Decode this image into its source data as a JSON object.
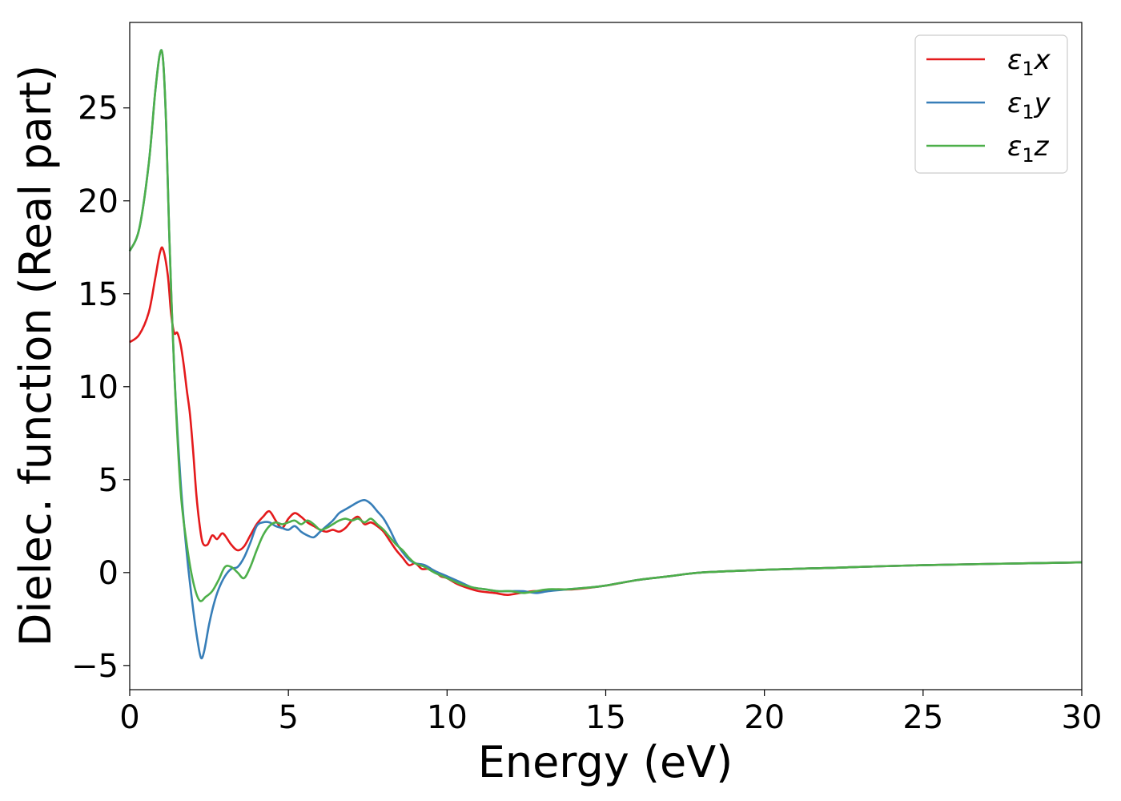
{
  "chart_data": {
    "type": "line",
    "title": "",
    "xlabel": "Energy (eV)",
    "ylabel": "Dielec. function (Real part)",
    "xlim": [
      0,
      30
    ],
    "ylim": [
      -6.3,
      29.6
    ],
    "xticks": [
      0,
      5,
      10,
      15,
      20,
      25,
      30
    ],
    "yticks": [
      -5,
      0,
      5,
      10,
      15,
      20,
      25
    ],
    "xtick_labels": [
      "0",
      "5",
      "10",
      "15",
      "20",
      "25",
      "30"
    ],
    "ytick_labels": [
      "−5",
      "0",
      "5",
      "10",
      "15",
      "20",
      "25"
    ],
    "grid": false,
    "legend_position": "top-right",
    "series": [
      {
        "name": "ε1x",
        "legend_base": "ε",
        "legend_sub": "1",
        "legend_var": "x",
        "color": "#e41a1c",
        "x": [
          0,
          0.3,
          0.6,
          0.8,
          0.95,
          1.05,
          1.2,
          1.3,
          1.4,
          1.5,
          1.6,
          1.7,
          1.8,
          1.9,
          2.0,
          2.1,
          2.2,
          2.3,
          2.45,
          2.6,
          2.75,
          2.9,
          3.0,
          3.2,
          3.4,
          3.6,
          3.8,
          4.0,
          4.2,
          4.4,
          4.6,
          4.8,
          5.0,
          5.2,
          5.4,
          5.6,
          5.8,
          6.0,
          6.2,
          6.4,
          6.6,
          6.8,
          7.0,
          7.2,
          7.4,
          7.6,
          7.8,
          8.0,
          8.2,
          8.4,
          8.6,
          8.8,
          9.0,
          9.2,
          9.4,
          9.6,
          9.8,
          10.0,
          10.3,
          10.6,
          11.0,
          11.5,
          11.9,
          12.3,
          12.7,
          13.0,
          13.5,
          14.0,
          15.0,
          16.0,
          17.0,
          18.0,
          20.0,
          22.0,
          25.0,
          30.0
        ],
        "y": [
          12.4,
          12.8,
          14.0,
          15.8,
          17.2,
          17.4,
          16.0,
          14.0,
          12.9,
          12.9,
          12.3,
          11.2,
          9.8,
          8.5,
          6.5,
          4.2,
          2.6,
          1.6,
          1.5,
          2.0,
          1.8,
          2.1,
          2.0,
          1.5,
          1.2,
          1.4,
          2.0,
          2.6,
          3.0,
          3.3,
          2.8,
          2.4,
          2.9,
          3.2,
          3.0,
          2.7,
          2.5,
          2.3,
          2.2,
          2.3,
          2.2,
          2.4,
          2.8,
          3.0,
          2.6,
          2.7,
          2.5,
          2.2,
          1.7,
          1.2,
          0.8,
          0.4,
          0.5,
          0.2,
          0.2,
          0.1,
          -0.2,
          -0.3,
          -0.6,
          -0.8,
          -1.0,
          -1.1,
          -1.2,
          -1.1,
          -1.0,
          -1.0,
          -0.9,
          -0.9,
          -0.7,
          -0.4,
          -0.2,
          0.0,
          0.15,
          0.25,
          0.4,
          0.55
        ]
      },
      {
        "name": "ε1y",
        "legend_base": "ε",
        "legend_sub": "1",
        "legend_var": "y",
        "color": "#377eb8",
        "x": [
          0,
          0.3,
          0.6,
          0.8,
          0.95,
          1.05,
          1.15,
          1.25,
          1.4,
          1.6,
          1.8,
          2.0,
          2.15,
          2.25,
          2.35,
          2.5,
          2.65,
          2.8,
          3.0,
          3.2,
          3.4,
          3.6,
          3.8,
          4.0,
          4.2,
          4.4,
          4.6,
          4.8,
          5.0,
          5.2,
          5.4,
          5.6,
          5.8,
          6.0,
          6.2,
          6.4,
          6.6,
          6.8,
          7.0,
          7.2,
          7.4,
          7.6,
          7.8,
          8.0,
          8.2,
          8.4,
          8.6,
          8.8,
          9.0,
          9.3,
          9.6,
          10.0,
          10.4,
          10.8,
          11.2,
          11.6,
          12.0,
          12.4,
          12.8,
          13.2,
          13.8,
          14.5,
          15.0,
          16.0,
          17.0,
          18.0,
          20.0,
          22.0,
          25.0,
          30.0
        ],
        "y": [
          17.3,
          18.5,
          22.0,
          25.8,
          27.9,
          27.6,
          24.0,
          18.0,
          11.0,
          5.0,
          1.0,
          -2.0,
          -3.8,
          -4.6,
          -4.2,
          -2.8,
          -1.7,
          -0.9,
          -0.2,
          0.2,
          0.3,
          0.8,
          1.6,
          2.5,
          2.7,
          2.7,
          2.5,
          2.4,
          2.3,
          2.5,
          2.2,
          2.0,
          1.9,
          2.2,
          2.5,
          2.8,
          3.2,
          3.4,
          3.6,
          3.8,
          3.9,
          3.7,
          3.3,
          2.9,
          2.3,
          1.6,
          1.1,
          0.7,
          0.5,
          0.4,
          0.1,
          -0.2,
          -0.5,
          -0.8,
          -0.9,
          -1.0,
          -1.0,
          -1.0,
          -1.1,
          -1.0,
          -0.9,
          -0.8,
          -0.7,
          -0.4,
          -0.2,
          0.0,
          0.15,
          0.25,
          0.4,
          0.55
        ]
      },
      {
        "name": "ε1z",
        "legend_base": "ε",
        "legend_sub": "1",
        "legend_var": "z",
        "color": "#4daf4a",
        "x": [
          0,
          0.3,
          0.6,
          0.8,
          0.95,
          1.05,
          1.15,
          1.25,
          1.4,
          1.6,
          1.8,
          2.0,
          2.2,
          2.4,
          2.6,
          2.8,
          3.0,
          3.2,
          3.4,
          3.6,
          3.8,
          4.0,
          4.2,
          4.4,
          4.6,
          4.8,
          5.0,
          5.2,
          5.4,
          5.6,
          5.8,
          6.0,
          6.2,
          6.4,
          6.6,
          6.8,
          7.0,
          7.2,
          7.4,
          7.6,
          7.8,
          8.0,
          8.2,
          8.4,
          8.6,
          8.8,
          9.0,
          9.3,
          9.6,
          10.0,
          10.4,
          10.8,
          11.2,
          11.6,
          12.0,
          12.4,
          12.8,
          13.2,
          13.8,
          14.5,
          15.0,
          16.0,
          17.0,
          18.0,
          20.0,
          22.0,
          25.0,
          30.0
        ],
        "y": [
          17.3,
          18.5,
          22.0,
          25.8,
          27.9,
          27.6,
          24.0,
          18.0,
          11.0,
          4.5,
          1.5,
          -0.5,
          -1.5,
          -1.3,
          -1.0,
          -0.4,
          0.3,
          0.3,
          0.0,
          -0.3,
          0.3,
          1.2,
          2.0,
          2.5,
          2.7,
          2.6,
          2.7,
          2.8,
          2.6,
          2.8,
          2.6,
          2.3,
          2.4,
          2.6,
          2.8,
          2.9,
          2.8,
          2.9,
          2.7,
          2.9,
          2.6,
          2.3,
          1.9,
          1.5,
          1.2,
          0.8,
          0.5,
          0.3,
          0.0,
          -0.3,
          -0.6,
          -0.8,
          -0.9,
          -1.0,
          -1.0,
          -1.1,
          -1.0,
          -0.9,
          -0.9,
          -0.8,
          -0.7,
          -0.4,
          -0.2,
          0.0,
          0.15,
          0.25,
          0.4,
          0.55
        ]
      }
    ]
  }
}
